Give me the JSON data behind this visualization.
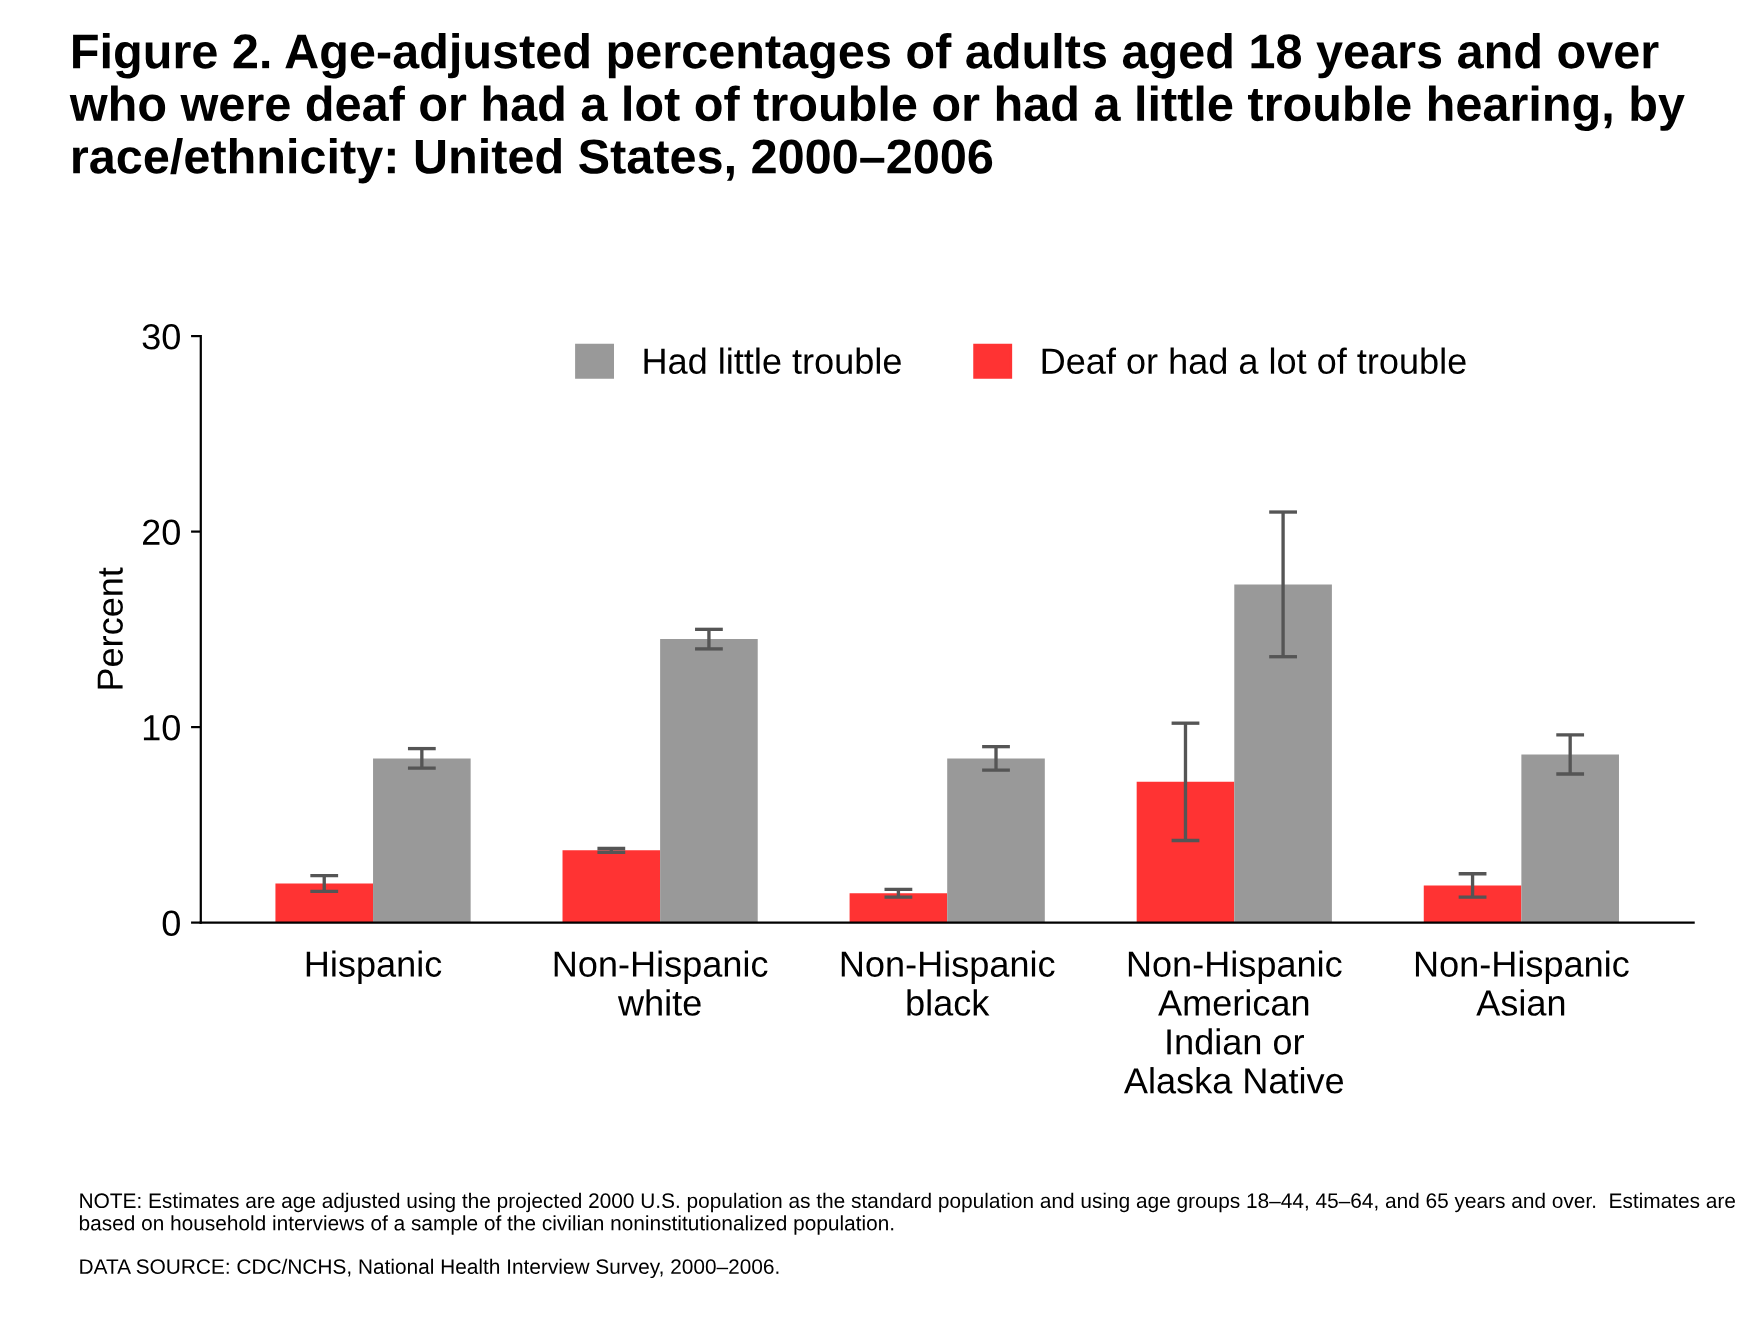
{
  "chart_data": {
    "type": "bar",
    "title": "Figure 2. Age-adjusted percentages of adults aged 18 years and over who were deaf or had a lot of trouble or had a little trouble hearing, by race/ethnicity: United States, 2000–2006",
    "ylabel": "Percent",
    "categories": [
      "Hispanic",
      "Non-Hispanic\nwhite",
      "Non-Hispanic\nblack",
      "Non-Hispanic\nAmerican\nIndian or\nAlaska Native",
      "Non-Hispanic\nAsian"
    ],
    "series": [
      {
        "name": "Deaf or had a lot of trouble",
        "color": "#ff3333",
        "values": [
          2.0,
          3.7,
          1.5,
          7.2,
          1.9
        ],
        "errors": [
          0.4,
          0.1,
          0.2,
          3.0,
          0.6
        ]
      },
      {
        "name": "Had little trouble",
        "color": "#999999",
        "values": [
          8.4,
          14.5,
          8.4,
          17.3,
          8.6
        ],
        "errors": [
          0.5,
          0.5,
          0.6,
          3.7,
          1.0
        ]
      }
    ],
    "ylim": [
      0,
      30
    ],
    "yticks": [
      0,
      10,
      20,
      30
    ],
    "grid": false,
    "legend": "top",
    "annotations": [
      "NOTE: Estimates are age adjusted using the projected 2000 U.S. population as the standard population and using age groups 18–44, 45–64, and 65 years and over.  Estimates are based on household interviews of a sample of the civilian noninstitutionalized population.",
      "DATA SOURCE: CDC/NCHS, National Health Interview Survey, 2000–2006."
    ]
  }
}
